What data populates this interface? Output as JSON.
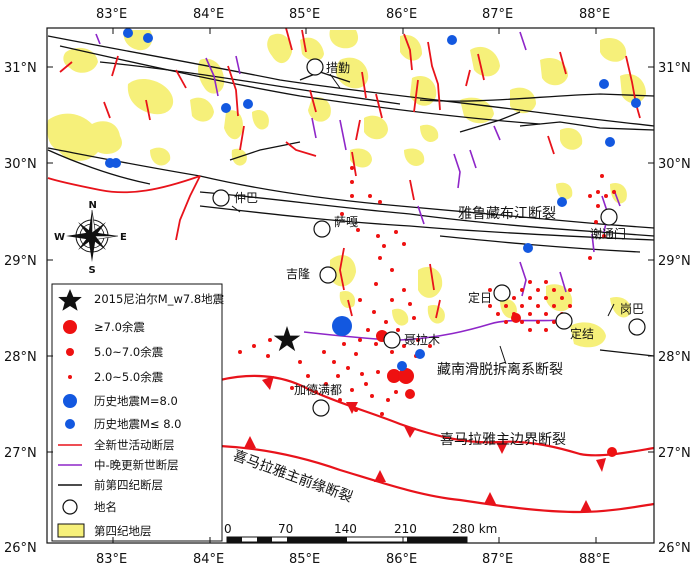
{
  "map": {
    "lon_ticks": [
      "83°E",
      "84°E",
      "85°E",
      "86°E",
      "87°E",
      "88°E"
    ],
    "lat_ticks": [
      "31°N",
      "30°N",
      "29°N",
      "28°N",
      "27°N",
      "26°N"
    ],
    "places": [
      "措勤",
      "仲巴",
      "萨嘎",
      "谢通门",
      "吉隆",
      "聂拉木",
      "定日",
      "岗巴",
      "定结",
      "加德满都"
    ],
    "features": {
      "yarlung": "雅鲁藏布江断裂",
      "stds": "藏南滑脱拆离系断裂",
      "mbt": "喜马拉雅主边界断裂",
      "mft": "喜马拉雅主前缘断裂"
    },
    "compass": {
      "n": "N",
      "s": "S",
      "e": "E",
      "w": "W"
    },
    "scale": {
      "labels": [
        "0",
        "70",
        "140",
        "210",
        "280 km"
      ]
    },
    "colors": {
      "holocene_fault": "#e8131b",
      "neogene_fault": "#8e26c8",
      "pre_quaternary_fault": "#111111",
      "quaternary": "#f6f07a",
      "aftershock": "#ee1111",
      "historic_quake": "#1358e0"
    }
  },
  "legend": {
    "items": [
      {
        "symbol": "star",
        "text": "2015尼泊尔M_w7.8地震"
      },
      {
        "symbol": "big-red-dot",
        "text": "≥7.0余震"
      },
      {
        "symbol": "mid-red-dot",
        "text": "5.0~7.0余震"
      },
      {
        "symbol": "small-red-dot",
        "text": "2.0~5.0余震"
      },
      {
        "symbol": "big-blue-dot",
        "text": "历史地震M=8.0"
      },
      {
        "symbol": "small-blue-dot",
        "text": "历史地震M≤ 8.0"
      },
      {
        "symbol": "red-line",
        "text": "全新世活动断层"
      },
      {
        "symbol": "purple-line",
        "text": "中-晚更新世断层"
      },
      {
        "symbol": "black-line",
        "text": "前第四纪断层"
      },
      {
        "symbol": "circle",
        "text": "地名"
      },
      {
        "symbol": "yellow-box",
        "text": "第四纪地层"
      }
    ]
  }
}
